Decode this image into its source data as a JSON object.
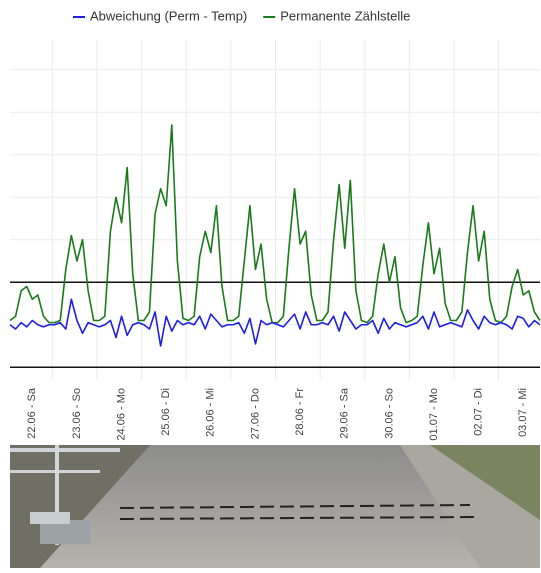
{
  "chart_data": {
    "type": "line",
    "categories": [
      null,
      null,
      null,
      null,
      "22.06 - Sa",
      null,
      null,
      null,
      null,
      null,
      null,
      null,
      "23.06 - So",
      null,
      null,
      null,
      null,
      null,
      null,
      null,
      "24.06 - Mo",
      null,
      null,
      null,
      null,
      null,
      null,
      null,
      "25.06 - Di",
      null,
      null,
      null,
      null,
      null,
      null,
      null,
      "26.06 - Mi",
      null,
      null,
      null,
      null,
      null,
      null,
      null,
      "27.06 - Do",
      null,
      null,
      null,
      null,
      null,
      null,
      null,
      "28.06 - Fr",
      null,
      null,
      null,
      null,
      null,
      null,
      null,
      "29.06 - Sa",
      null,
      null,
      null,
      null,
      null,
      null,
      null,
      "30.06 - So",
      null,
      null,
      null,
      null,
      null,
      null,
      null,
      "01.07 - Mo",
      null,
      null,
      null,
      null,
      null,
      null,
      null,
      "02.07 - Di",
      null,
      null,
      null,
      null,
      null,
      null,
      null,
      "03.07 - Mi",
      null,
      null,
      null
    ],
    "series": [
      {
        "name": "Abweichung (Perm - Temp)",
        "color": "#1f1fe6",
        "values": [
          0.0,
          -0.1,
          0.05,
          -0.05,
          0.1,
          0.0,
          -0.05,
          0.0,
          0.0,
          0.05,
          -0.1,
          0.6,
          0.1,
          -0.2,
          0.05,
          0.0,
          -0.05,
          0.0,
          0.1,
          -0.3,
          0.2,
          -0.25,
          0.0,
          0.05,
          0.0,
          -0.1,
          0.3,
          -0.5,
          0.2,
          -0.15,
          0.1,
          0.0,
          0.05,
          0.0,
          0.2,
          -0.1,
          0.25,
          0.1,
          -0.05,
          0.0,
          0.0,
          0.05,
          -0.2,
          0.15,
          -0.45,
          0.1,
          0.0,
          0.05,
          0.0,
          -0.05,
          0.1,
          0.25,
          -0.1,
          0.3,
          0.0,
          0.0,
          0.05,
          0.0,
          0.2,
          -0.15,
          0.3,
          0.1,
          -0.1,
          0.0,
          0.0,
          0.1,
          -0.2,
          0.15,
          -0.1,
          0.05,
          0.0,
          -0.05,
          0.0,
          0.05,
          0.2,
          -0.1,
          0.3,
          -0.05,
          0.0,
          0.05,
          0.0,
          -0.05,
          0.35,
          0.1,
          -0.1,
          0.2,
          0.05,
          0.0,
          0.05,
          0.0,
          -0.1,
          0.2,
          0.15,
          -0.05,
          0.1,
          0.0
        ]
      },
      {
        "name": "Permanente Zählstelle",
        "color": "#1b7a1b",
        "values": [
          0.1,
          0.2,
          0.8,
          0.9,
          0.6,
          0.7,
          0.2,
          0.05,
          0.05,
          0.1,
          1.3,
          2.1,
          1.5,
          2.0,
          0.8,
          0.1,
          0.1,
          0.2,
          2.2,
          3.0,
          2.4,
          3.7,
          1.2,
          0.1,
          0.1,
          0.3,
          2.6,
          3.2,
          2.8,
          4.7,
          1.5,
          0.15,
          0.1,
          0.2,
          1.6,
          2.2,
          1.7,
          2.8,
          0.9,
          0.1,
          0.1,
          0.2,
          1.5,
          2.8,
          1.3,
          1.9,
          0.6,
          0.05,
          0.05,
          0.2,
          1.8,
          3.2,
          1.9,
          2.2,
          0.7,
          0.1,
          0.1,
          0.3,
          2.0,
          3.3,
          1.8,
          3.4,
          0.8,
          0.1,
          0.05,
          0.2,
          1.2,
          1.9,
          1.0,
          1.6,
          0.4,
          0.05,
          0.1,
          0.2,
          1.4,
          2.4,
          1.2,
          1.8,
          0.5,
          0.1,
          0.1,
          0.3,
          1.7,
          2.8,
          1.5,
          2.2,
          0.6,
          0.1,
          0.05,
          0.2,
          0.9,
          1.3,
          0.7,
          0.8,
          0.3,
          0.1
        ]
      }
    ],
    "ylim": [
      -1.3,
      6.7
    ],
    "yticks": [
      -1,
      0,
      1,
      2,
      3,
      4,
      5,
      6
    ],
    "grid": true,
    "reference_lines": [
      -1,
      1
    ],
    "legend": "top"
  }
}
